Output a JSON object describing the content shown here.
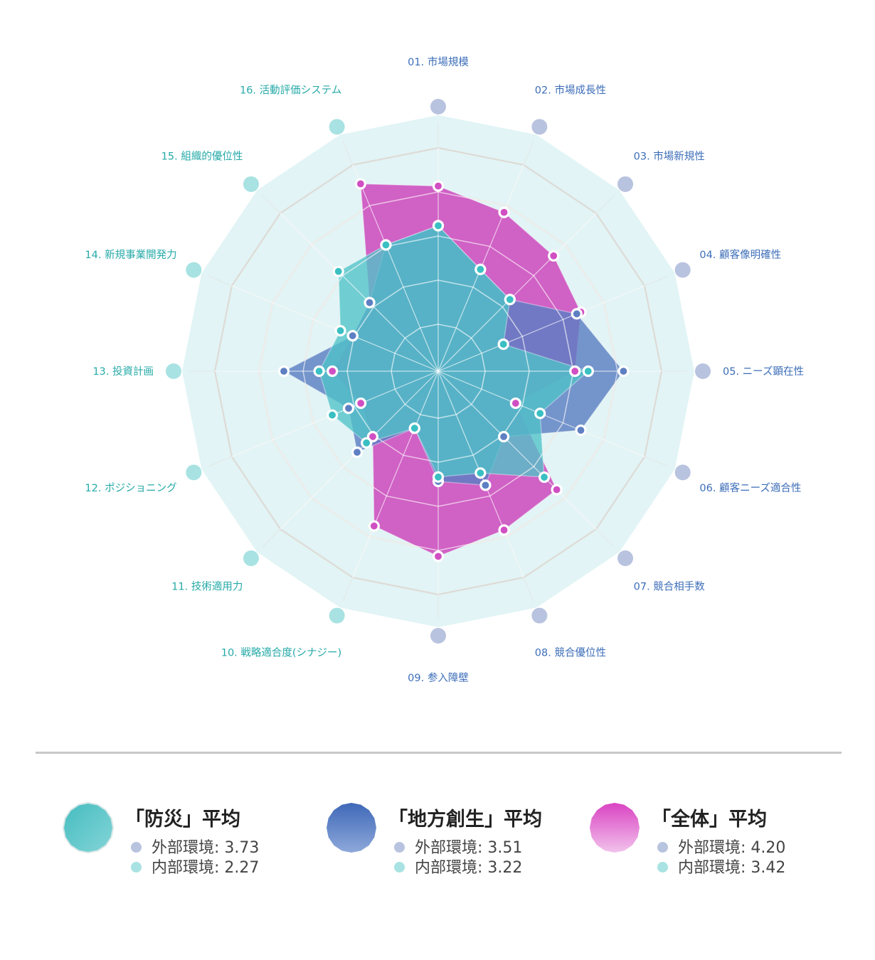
{
  "chart_data": {
    "type": "radar",
    "range": [
      0,
      5
    ],
    "axes": [
      {
        "label": "01. 市場規模",
        "group": "external"
      },
      {
        "label": "02. 市場成長性",
        "group": "external"
      },
      {
        "label": "03. 市場新規性",
        "group": "external"
      },
      {
        "label": "04. 顧客像明確性",
        "group": "external"
      },
      {
        "label": "05. ニーズ顕在性",
        "group": "external"
      },
      {
        "label": "06. 顧客ニーズ適合性",
        "group": "external"
      },
      {
        "label": "07. 競合相手数",
        "group": "external"
      },
      {
        "label": "08. 競合優位性",
        "group": "external"
      },
      {
        "label": "09. 参入障壁",
        "group": "external"
      },
      {
        "label": "10. 戦略適合度(シナジー)",
        "group": "internal"
      },
      {
        "label": "11. 技術適用力",
        "group": "internal"
      },
      {
        "label": "12. ポジショニング",
        "group": "internal"
      },
      {
        "label": "13. 投資計画",
        "group": "internal"
      },
      {
        "label": "14. 新規事業開発力",
        "group": "internal"
      },
      {
        "label": "15. 組織的優位性",
        "group": "internal"
      },
      {
        "label": "16. 活動評価システム",
        "group": "internal"
      }
    ],
    "series": [
      {
        "name": "「全体」平均",
        "key": "zentai",
        "fill": "#cc47bc",
        "fill_opacity": 0.85,
        "point_color": "#d04fc2",
        "values": [
          4.2,
          3.9,
          3.7,
          3.5,
          3.1,
          1.9,
          3.8,
          3.9,
          4.2,
          3.8,
          2.1,
          1.9,
          2.4,
          2.1,
          2.2,
          4.6
        ]
      },
      {
        "name": "「地方創生」平均",
        "key": "chihou",
        "fill": "#5b7fc3",
        "fill_opacity": 0.82,
        "point_color": "#5e7fc2",
        "values": [
          3.3,
          2.5,
          2.3,
          3.4,
          4.2,
          3.5,
          2.1,
          2.8,
          2.5,
          1.4,
          2.6,
          2.2,
          3.5,
          2.1,
          2.2,
          3.1
        ]
      },
      {
        "name": "「防災」平均",
        "key": "bousai",
        "fill": "#4fc3c8",
        "fill_opacity": 0.78,
        "point_color": "#3abfc2",
        "values": [
          3.3,
          2.5,
          2.3,
          1.6,
          3.4,
          2.5,
          3.4,
          2.5,
          2.4,
          1.4,
          2.3,
          2.6,
          2.7,
          2.4,
          3.2,
          3.1
        ]
      }
    ]
  },
  "colors": {
    "external_label": "#3d6eb8",
    "internal_label": "#26aaa8",
    "external_marker": "#b8c3df",
    "internal_marker": "#a9e2e2",
    "background_polygon": "#e2f4f5",
    "grid": "#dedbd6",
    "spoke": "#ffffff"
  },
  "legend": [
    {
      "title": "「防災」平均",
      "swatch": "bousai-swatch",
      "ext_label": "外部環境: 3.73",
      "int_label": "内部環境: 2.27"
    },
    {
      "title": "「地方創生」平均",
      "swatch": "chihou-swatch",
      "ext_label": "外部環境: 3.51",
      "int_label": "内部環境: 3.22"
    },
    {
      "title": "「全体」平均",
      "swatch": "zentai-swatch",
      "ext_label": "外部環境: 4.20",
      "int_label": "内部環境: 3.42"
    }
  ]
}
